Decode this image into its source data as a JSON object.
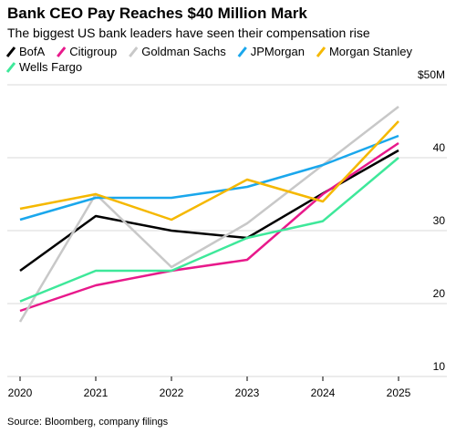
{
  "chart_data": {
    "type": "line",
    "title": "Bank CEO Pay Reaches $40 Million Mark",
    "subtitle": "The biggest US bank leaders have seen their compensation rise",
    "source": "Source: Bloomberg, company filings",
    "categories": [
      "2020",
      "2021",
      "2022",
      "2023",
      "2024",
      "2025"
    ],
    "series": [
      {
        "name": "BofA",
        "color": "#000000",
        "values": [
          24.5,
          32,
          30,
          29,
          35.1,
          41
        ]
      },
      {
        "name": "Citigroup",
        "color": "#e8198b",
        "values": [
          19,
          22.5,
          24.5,
          26,
          35,
          42
        ]
      },
      {
        "name": "Goldman Sachs",
        "color": "#c8c8c8",
        "values": [
          17.5,
          35,
          25,
          31,
          39,
          47
        ]
      },
      {
        "name": "JPMorgan",
        "color": "#1aa7ec",
        "values": [
          31.5,
          34.5,
          34.5,
          36,
          39,
          43
        ]
      },
      {
        "name": "Morgan Stanley",
        "color": "#f5b800",
        "values": [
          33,
          35,
          31.5,
          37,
          34,
          45
        ]
      },
      {
        "name": "Wells Fargo",
        "color": "#3ee89a",
        "values": [
          20.3,
          24.5,
          24.5,
          29,
          31.3,
          40
        ]
      }
    ],
    "ylim": [
      10,
      50
    ],
    "yticks": [
      10,
      20,
      30,
      40,
      {
        "value": 50,
        "label": "$50M"
      }
    ],
    "grid": true
  }
}
